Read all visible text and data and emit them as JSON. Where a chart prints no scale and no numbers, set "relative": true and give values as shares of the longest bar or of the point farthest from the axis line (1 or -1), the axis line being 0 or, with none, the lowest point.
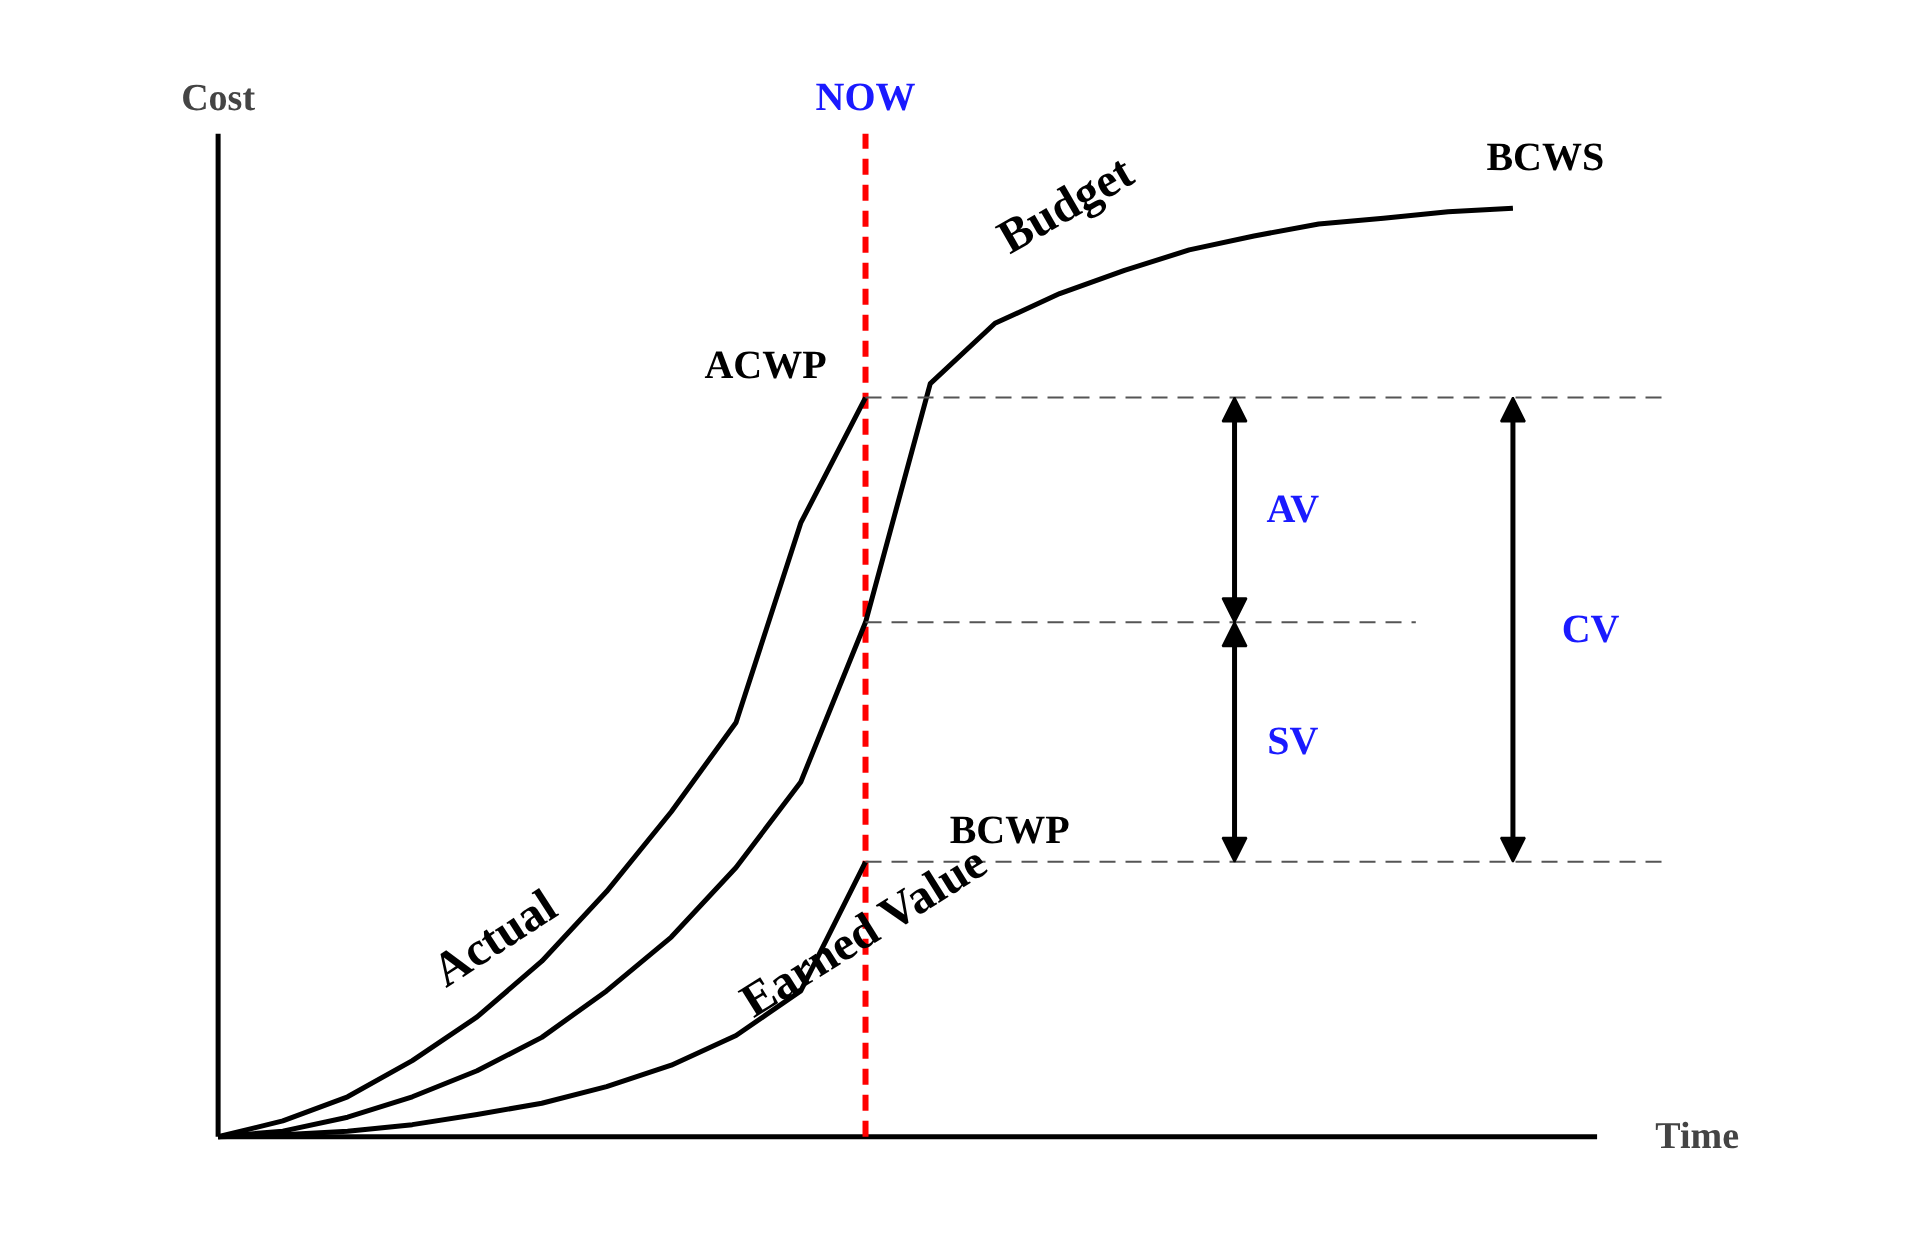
{
  "chart_data": {
    "type": "line",
    "relative": true,
    "xlabel": "Time",
    "ylabel": "Cost",
    "grid": false,
    "marker": "none",
    "line_style": "solid",
    "categories": [
      null,
      null,
      null,
      null,
      null,
      null,
      null,
      null,
      null,
      null,
      null,
      null,
      null,
      null,
      null,
      null,
      null,
      null,
      null,
      null,
      null
    ],
    "series": [
      {
        "name": "Actual",
        "color": "#000000",
        "values": [
          0,
          0.017,
          0.043,
          0.082,
          0.129,
          0.189,
          0.264,
          0.35,
          0.446,
          0.661,
          0.796,
          null,
          null,
          null,
          null,
          null,
          null,
          null,
          null,
          null,
          null
        ]
      },
      {
        "name": "Budget",
        "color": "#000000",
        "values": [
          0,
          0.006,
          0.021,
          0.043,
          0.071,
          0.107,
          0.157,
          0.215,
          0.29,
          0.382,
          0.554,
          0.811,
          0.876,
          0.908,
          0.933,
          0.955,
          0.97,
          0.983,
          0.989,
          0.996,
          1
        ]
      },
      {
        "name": "Earned Value",
        "color": "#000000",
        "values": [
          0,
          0.002,
          0.006,
          0.013,
          0.024,
          0.036,
          0.054,
          0.077,
          0.109,
          0.157,
          0.296,
          null,
          null,
          null,
          null,
          null,
          null,
          null,
          null,
          null,
          null
        ]
      }
    ],
    "ref_lines": [
      {
        "axis": "y",
        "value": 0.796,
        "color": "#555555",
        "line_style": "dashed"
      },
      {
        "axis": "y",
        "value": 0.554,
        "color": "#555555",
        "line_style": "dashed"
      },
      {
        "axis": "y",
        "value": 0.296,
        "color": "#555555",
        "line_style": "dashed"
      }
    ],
    "annotations": [
      "ACWP",
      "BCWS",
      "BCWP",
      "AV",
      "SV",
      "CV",
      "NOW"
    ]
  }
}
